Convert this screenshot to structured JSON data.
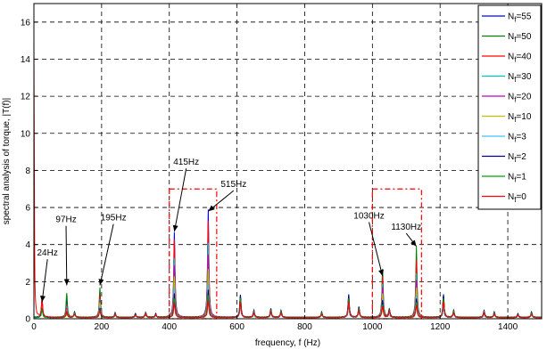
{
  "chart_data": {
    "type": "line",
    "title": "",
    "xlabel": "frequency, f (Hz)",
    "ylabel": "spectral analysis of torque, |T(f)|",
    "xlim": [
      0,
      1500
    ],
    "ylim": [
      0,
      17
    ],
    "xticks": [
      0,
      200,
      400,
      600,
      800,
      1000,
      1200,
      1400
    ],
    "yticks": [
      0,
      2,
      4,
      6,
      8,
      10,
      12,
      14,
      16
    ],
    "grid": true,
    "grid_style": "dashed",
    "legend_position": "top-right",
    "series": [
      {
        "name": "Nf=55",
        "color": "#0000ff",
        "peaks": [
          [
            24,
            0.9
          ],
          [
            97,
            1.0
          ],
          [
            195,
            1.4
          ],
          [
            415,
            4.6
          ],
          [
            515,
            5.8
          ],
          [
            1030,
            2.2
          ],
          [
            1130,
            3.0
          ]
        ]
      },
      {
        "name": "Nf=50",
        "color": "#008000",
        "peaks": [
          [
            24,
            0.8
          ],
          [
            97,
            1.3
          ],
          [
            195,
            1.6
          ],
          [
            415,
            3.8
          ],
          [
            515,
            4.6
          ],
          [
            1030,
            2.6
          ],
          [
            1130,
            3.8
          ]
        ]
      },
      {
        "name": "Nf=40",
        "color": "#ff0000",
        "peaks": [
          [
            24,
            1.0
          ],
          [
            97,
            0.7
          ],
          [
            195,
            1.2
          ],
          [
            415,
            4.2
          ],
          [
            515,
            5.2
          ],
          [
            1030,
            2.2
          ],
          [
            1130,
            3.1
          ]
        ]
      },
      {
        "name": "Nf=30",
        "color": "#00bfbf",
        "peaks": [
          [
            24,
            0.8
          ],
          [
            97,
            0.6
          ],
          [
            195,
            1.0
          ],
          [
            415,
            3.2
          ],
          [
            515,
            4.0
          ],
          [
            1030,
            1.8
          ],
          [
            1130,
            2.4
          ]
        ]
      },
      {
        "name": "Nf=20",
        "color": "#bf00bf",
        "peaks": [
          [
            24,
            0.7
          ],
          [
            97,
            0.5
          ],
          [
            195,
            0.9
          ],
          [
            415,
            2.8
          ],
          [
            515,
            3.4
          ],
          [
            1030,
            1.6
          ],
          [
            1130,
            2.0
          ]
        ]
      },
      {
        "name": "Nf=10",
        "color": "#bfbf00",
        "peaks": [
          [
            24,
            0.6
          ],
          [
            97,
            0.4
          ],
          [
            195,
            0.8
          ],
          [
            415,
            2.2
          ],
          [
            515,
            2.6
          ],
          [
            1030,
            1.3
          ],
          [
            1130,
            1.6
          ]
        ]
      },
      {
        "name": "Nf=3",
        "color": "#40c0ff",
        "peaks": [
          [
            24,
            0.5
          ],
          [
            97,
            0.3
          ],
          [
            195,
            0.6
          ],
          [
            415,
            1.6
          ],
          [
            515,
            1.8
          ],
          [
            1030,
            1.0
          ],
          [
            1130,
            1.2
          ]
        ]
      },
      {
        "name": "Nf=2",
        "color": "#000080",
        "peaks": [
          [
            24,
            0.5
          ],
          [
            97,
            0.3
          ],
          [
            195,
            0.5
          ],
          [
            415,
            1.3
          ],
          [
            515,
            1.5
          ],
          [
            1030,
            0.9
          ],
          [
            1130,
            1.0
          ]
        ]
      },
      {
        "name": "Nf=1",
        "color": "#00a000",
        "peaks": [
          [
            24,
            0.4
          ],
          [
            97,
            0.2
          ],
          [
            195,
            0.4
          ],
          [
            415,
            1.0
          ],
          [
            515,
            1.2
          ],
          [
            1030,
            0.7
          ],
          [
            1130,
            0.8
          ]
        ]
      },
      {
        "name": "Nf=0",
        "color": "#ff0000",
        "peaks": [
          [
            0,
            15.0
          ],
          [
            24,
            0.9
          ],
          [
            97,
            0.3
          ],
          [
            195,
            0.4
          ],
          [
            415,
            0.8
          ],
          [
            515,
            0.9
          ],
          [
            1030,
            0.6
          ],
          [
            1130,
            0.7
          ]
        ]
      }
    ],
    "minor_peaks": [
      [
        120,
        0.3
      ],
      [
        240,
        0.25
      ],
      [
        300,
        0.2
      ],
      [
        330,
        0.3
      ],
      [
        360,
        0.2
      ],
      [
        610,
        1.3
      ],
      [
        650,
        0.4
      ],
      [
        700,
        0.5
      ],
      [
        730,
        0.4
      ],
      [
        850,
        0.3
      ],
      [
        930,
        1.3
      ],
      [
        960,
        0.6
      ],
      [
        1050,
        0.5
      ],
      [
        1210,
        1.3
      ],
      [
        1240,
        0.4
      ],
      [
        1330,
        0.4
      ],
      [
        1360,
        0.3
      ],
      [
        1430,
        0.2
      ],
      [
        1470,
        0.3
      ]
    ],
    "annotations": [
      {
        "text": "24Hz",
        "x": 24,
        "y": 0.9,
        "text_x": 40,
        "text_y": 3.4
      },
      {
        "text": "97Hz",
        "x": 97,
        "y": 1.8,
        "text_x": 95,
        "text_y": 5.2
      },
      {
        "text": "195Hz",
        "x": 195,
        "y": 1.8,
        "text_x": 235,
        "text_y": 5.3
      },
      {
        "text": "415Hz",
        "x": 415,
        "y": 4.7,
        "text_x": 450,
        "text_y": 8.3
      },
      {
        "text": "515Hz",
        "x": 515,
        "y": 5.8,
        "text_x": 590,
        "text_y": 7.1
      },
      {
        "text": "1030Hz",
        "x": 1030,
        "y": 2.3,
        "text_x": 990,
        "text_y": 5.4
      },
      {
        "text": "1130Hz",
        "x": 1130,
        "y": 3.9,
        "text_x": 1100,
        "text_y": 4.8
      }
    ],
    "highlight_boxes": [
      {
        "x": [
          400,
          540
        ],
        "y": [
          0,
          7
        ]
      },
      {
        "x": [
          1000,
          1145
        ],
        "y": [
          0,
          7
        ]
      }
    ]
  }
}
